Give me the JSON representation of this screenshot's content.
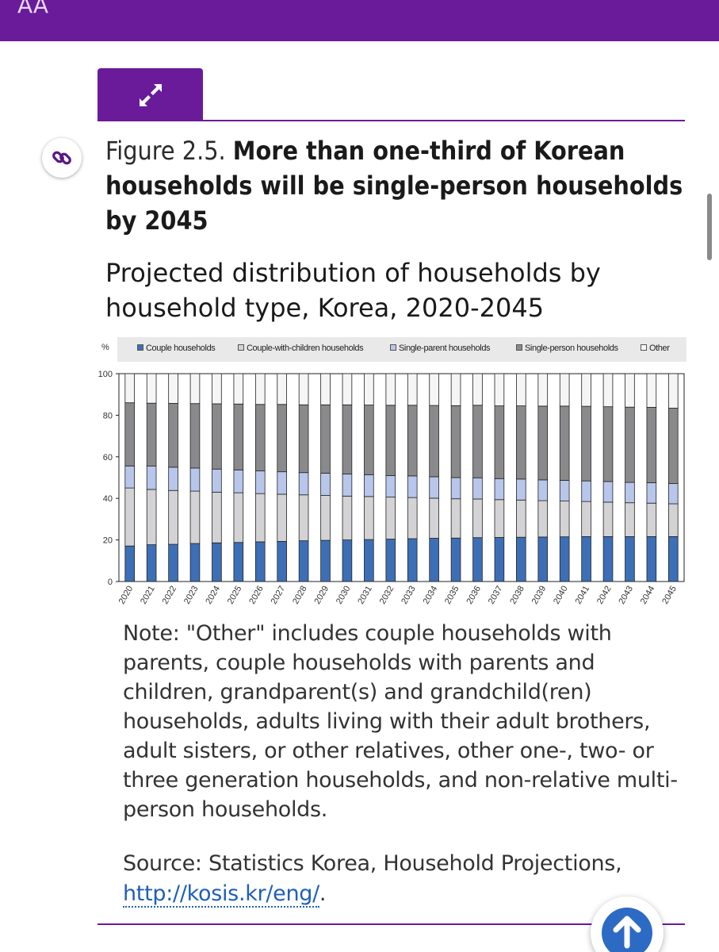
{
  "header": {
    "text_size_label": "AA"
  },
  "figure": {
    "label": "Figure 2.5.",
    "title": "More than one-third of Korean households will be single-person households by 2045",
    "subtitle": "Projected distribution of households by household type, Korea, 2020-2045"
  },
  "colors": {
    "brand": "#6a1b9a",
    "link": "#1f5fb8",
    "couple": "#3d6fb6",
    "couple_children": "#d3d3d5",
    "single_parent": "#b7c6ea",
    "single_person": "#8a8a8c",
    "other": "#f5f5f6"
  },
  "chart_data": {
    "type": "bar",
    "stacked": true,
    "ylabel": "%",
    "ylim": [
      0,
      100
    ],
    "yticks": [
      0,
      20,
      40,
      60,
      80,
      100
    ],
    "categories": [
      "2020",
      "2021",
      "2022",
      "2023",
      "2024",
      "2025",
      "2026",
      "2027",
      "2028",
      "2029",
      "2030",
      "2031",
      "2032",
      "2033",
      "2034",
      "2035",
      "2036",
      "2037",
      "2038",
      "2039",
      "2040",
      "2041",
      "2042",
      "2043",
      "2044",
      "2045"
    ],
    "series": [
      {
        "name": "Couple households",
        "color": "#3d6fb6",
        "values": [
          17.1,
          17.7,
          17.9,
          18.3,
          18.6,
          18.8,
          19.1,
          19.3,
          19.6,
          19.8,
          20.0,
          20.2,
          20.4,
          20.6,
          20.8,
          20.9,
          21.1,
          21.2,
          21.3,
          21.4,
          21.5,
          21.6,
          21.6,
          21.6,
          21.6,
          21.6
        ]
      },
      {
        "name": "Couple-with-children households",
        "color": "#d3d3d5",
        "values": [
          27.9,
          26.6,
          25.9,
          25.2,
          24.4,
          23.9,
          23.2,
          22.7,
          22.1,
          21.6,
          21.1,
          20.7,
          20.2,
          19.8,
          19.3,
          18.9,
          18.6,
          18.2,
          17.9,
          17.5,
          17.2,
          16.9,
          16.6,
          16.3,
          16.1,
          15.8
        ]
      },
      {
        "name": "Single-parent households",
        "color": "#b7c6ea",
        "values": [
          10.6,
          11.2,
          11.2,
          11.1,
          11.1,
          11.0,
          10.9,
          10.8,
          10.7,
          10.7,
          10.6,
          10.5,
          10.4,
          10.4,
          10.3,
          10.2,
          10.2,
          10.1,
          10.1,
          10.0,
          10.0,
          9.9,
          9.9,
          9.8,
          9.8,
          9.7
        ]
      },
      {
        "name": "Single-person households",
        "color": "#8a8a8c",
        "values": [
          30.4,
          30.3,
          30.7,
          31.0,
          31.4,
          31.7,
          32.0,
          32.4,
          32.6,
          32.9,
          33.3,
          33.5,
          33.8,
          34.0,
          34.3,
          34.6,
          34.9,
          35.0,
          35.2,
          35.5,
          35.7,
          35.9,
          36.0,
          36.2,
          36.3,
          36.3
        ]
      },
      {
        "name": "Other",
        "color": "#f5f5f6",
        "values": [
          14.0,
          14.2,
          14.3,
          14.4,
          14.5,
          14.6,
          14.8,
          14.8,
          15.0,
          15.0,
          15.0,
          15.1,
          15.2,
          15.2,
          15.3,
          15.4,
          15.2,
          15.5,
          15.5,
          15.6,
          15.6,
          15.7,
          15.9,
          16.1,
          16.2,
          16.6
        ]
      }
    ]
  },
  "note": "Note: \"Other\" includes couple households with parents, couple households with parents and children, grandparent(s) and grandchild(ren) households, adults living with their adult brothers, adult sisters, or other relatives, other one-, two- or three generation households, and non-relative multi-person households.",
  "source": {
    "prefix": "Source: Statistics Korea, Household Projections,",
    "link_text": "http://kosis.kr/eng/",
    "suffix": "."
  },
  "icons": {
    "expand": "expand-arrows-icon",
    "link": "link-icon",
    "back_to_top": "arrow-up-icon"
  }
}
